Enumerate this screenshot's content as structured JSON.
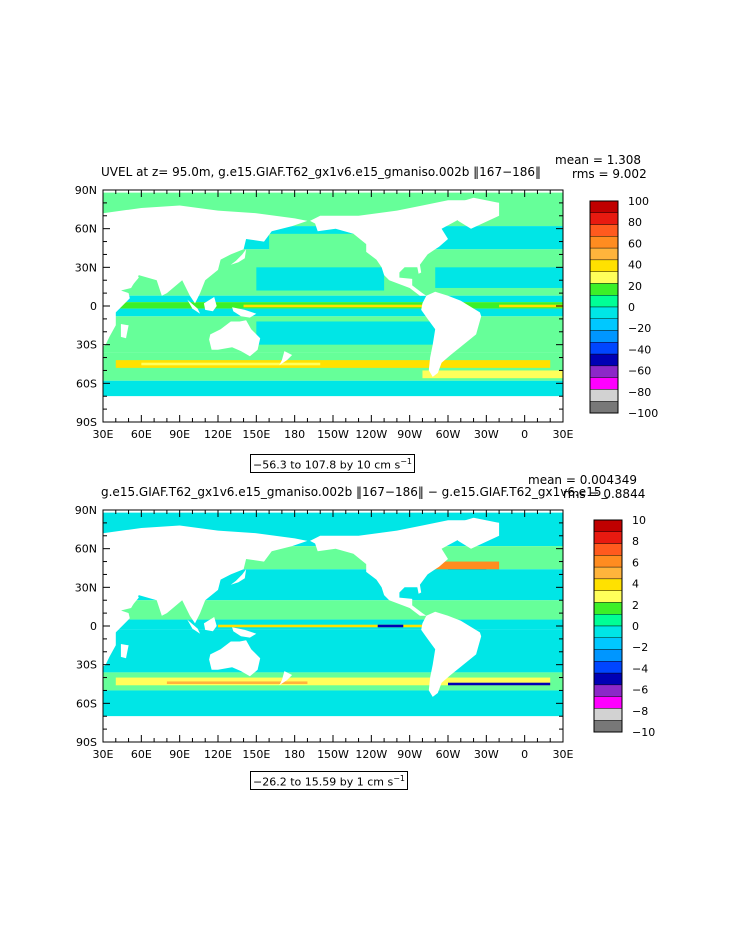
{
  "panels": [
    {
      "title": "UVEL at z=  95.0m, g.e15.GIAF.T62_gx1v6.e15_gmaniso.002b ‖167−186‖",
      "mean_label": "mean = 1.308",
      "rms_label": "rms = 9.002",
      "range_label": "−56.3 to 107.8 by 10 cm s",
      "range_sup": "−1",
      "lat_labels": [
        "90N",
        "60N",
        "30N",
        "0",
        "30S",
        "60S",
        "90S"
      ],
      "lon_labels": [
        "30E",
        "60E",
        "90E",
        "120E",
        "150E",
        "180",
        "150W",
        "120W",
        "90W",
        "60W",
        "30W",
        "0",
        "30E"
      ],
      "colorbar_labels": [
        "100",
        "80",
        "60",
        "40",
        "20",
        "0",
        "−20",
        "−40",
        "−60",
        "−80",
        "−100"
      ]
    },
    {
      "title": "g.e15.GIAF.T62_gx1v6.e15_gmaniso.002b ‖167−186‖ − g.e15.GIAF.T62_gx1v6.e15_",
      "mean_label": "mean = 0.004349",
      "rms_label": "rms = 0.8844",
      "range_label": "−26.2 to 15.59 by 1 cm s",
      "range_sup": "−1",
      "lat_labels": [
        "90N",
        "60N",
        "30N",
        "0",
        "30S",
        "60S",
        "90S"
      ],
      "lon_labels": [
        "30E",
        "60E",
        "90E",
        "120E",
        "150E",
        "180",
        "150W",
        "120W",
        "90W",
        "60W",
        "30W",
        "0",
        "30E"
      ],
      "colorbar_labels": [
        "10",
        "8",
        "6",
        "4",
        "2",
        "0",
        "−2",
        "−4",
        "−6",
        "−8",
        "−10"
      ]
    }
  ],
  "colors": {
    "palette": [
      "#c00000",
      "#e81a10",
      "#ff5a1e",
      "#ff8c20",
      "#ffb43c",
      "#ffe100",
      "#ffff5a",
      "#3cf028",
      "#00ff96",
      "#00e6e6",
      "#00c8ff",
      "#0096ff",
      "#0046ff",
      "#0000b4",
      "#8c28c8",
      "#ff00ff",
      "#d2d2d2",
      "#787878"
    ],
    "ocean_base": "#66ff99",
    "land": "#ffffff"
  }
}
